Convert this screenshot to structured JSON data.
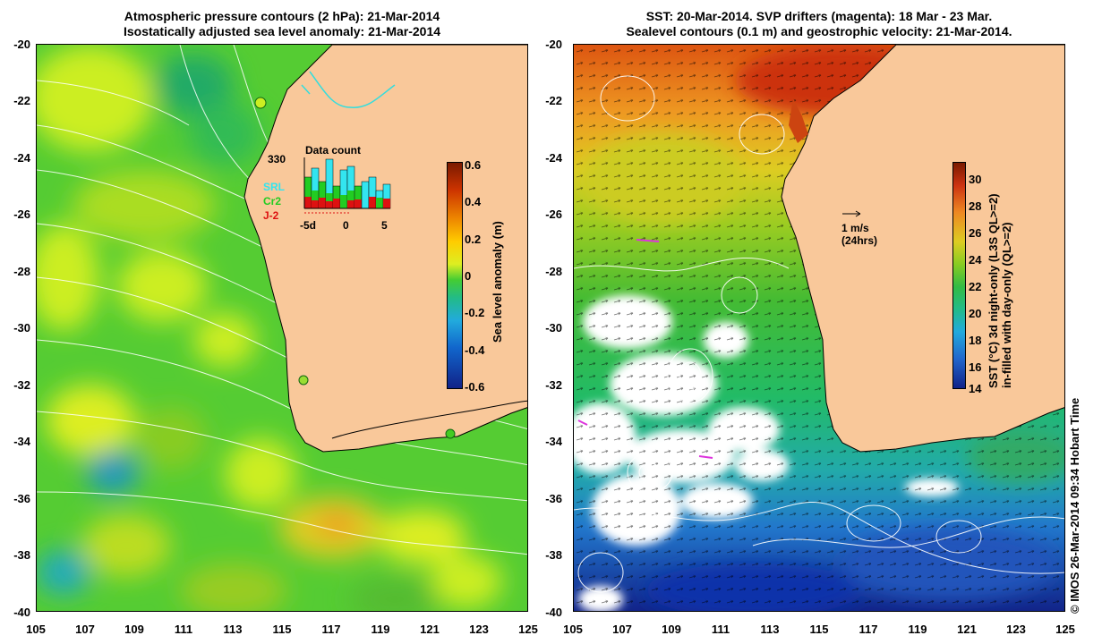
{
  "left_panel": {
    "title_line1": "Atmospheric pressure contours (2 hPa): 21-Mar-2014",
    "title_line2": "Isostatically adjusted sea level anomaly: 21-Mar-2014",
    "y_ticks": [
      "-20",
      "-22",
      "-24",
      "-26",
      "-28",
      "-30",
      "-32",
      "-34",
      "-36",
      "-38",
      "-40"
    ],
    "x_ticks": [
      "105",
      "107",
      "109",
      "111",
      "113",
      "115",
      "117",
      "119",
      "121",
      "123",
      "125"
    ],
    "colorbar": {
      "label": "Sea level anomaly (m)",
      "ticks": [
        "0.6",
        "0.4",
        "0.2",
        "0",
        "-0.2",
        "-0.4",
        "-0.6"
      ]
    },
    "inset": {
      "title": "Data count",
      "max_label": "330",
      "legend": [
        {
          "name": "SRL",
          "color": "#33e5f0"
        },
        {
          "name": "Cr2",
          "color": "#22cc22"
        },
        {
          "name": "J-2",
          "color": "#dd1111"
        }
      ],
      "x_ticks": [
        "-5d",
        "0",
        "5"
      ],
      "colors": {
        "srl": "#33e5f0",
        "cr2": "#22cc22",
        "j2": "#dd1111"
      }
    }
  },
  "right_panel": {
    "title_line1": "SST: 20-Mar-2014. SVP drifters (magenta): 18 Mar - 23 Mar.",
    "title_line2": "Sealevel contours (0.1 m) and geostrophic velocity: 21-Mar-2014.",
    "y_ticks": [
      "-20",
      "-22",
      "-24",
      "-26",
      "-28",
      "-30",
      "-32",
      "-34",
      "-36",
      "-38",
      "-40"
    ],
    "x_ticks": [
      "105",
      "107",
      "109",
      "111",
      "113",
      "115",
      "117",
      "119",
      "121",
      "123",
      "125"
    ],
    "colorbar": {
      "label_line1": "SST (°C)  3d night-only (L3S QL>=2)",
      "label_line2": "in-filled with day-only (QL>=2)",
      "ticks": [
        "30",
        "28",
        "26",
        "24",
        "22",
        "20",
        "18",
        "16",
        "14"
      ]
    },
    "scale_arrow": {
      "line1": "1 m/s",
      "line2": "(24hrs)"
    }
  },
  "credit": "© IMOS 26-Mar-2014 09:34 Hobart Time",
  "colors": {
    "land": "#f9c89a",
    "coast": "#000000",
    "contour": "#ffffff"
  }
}
